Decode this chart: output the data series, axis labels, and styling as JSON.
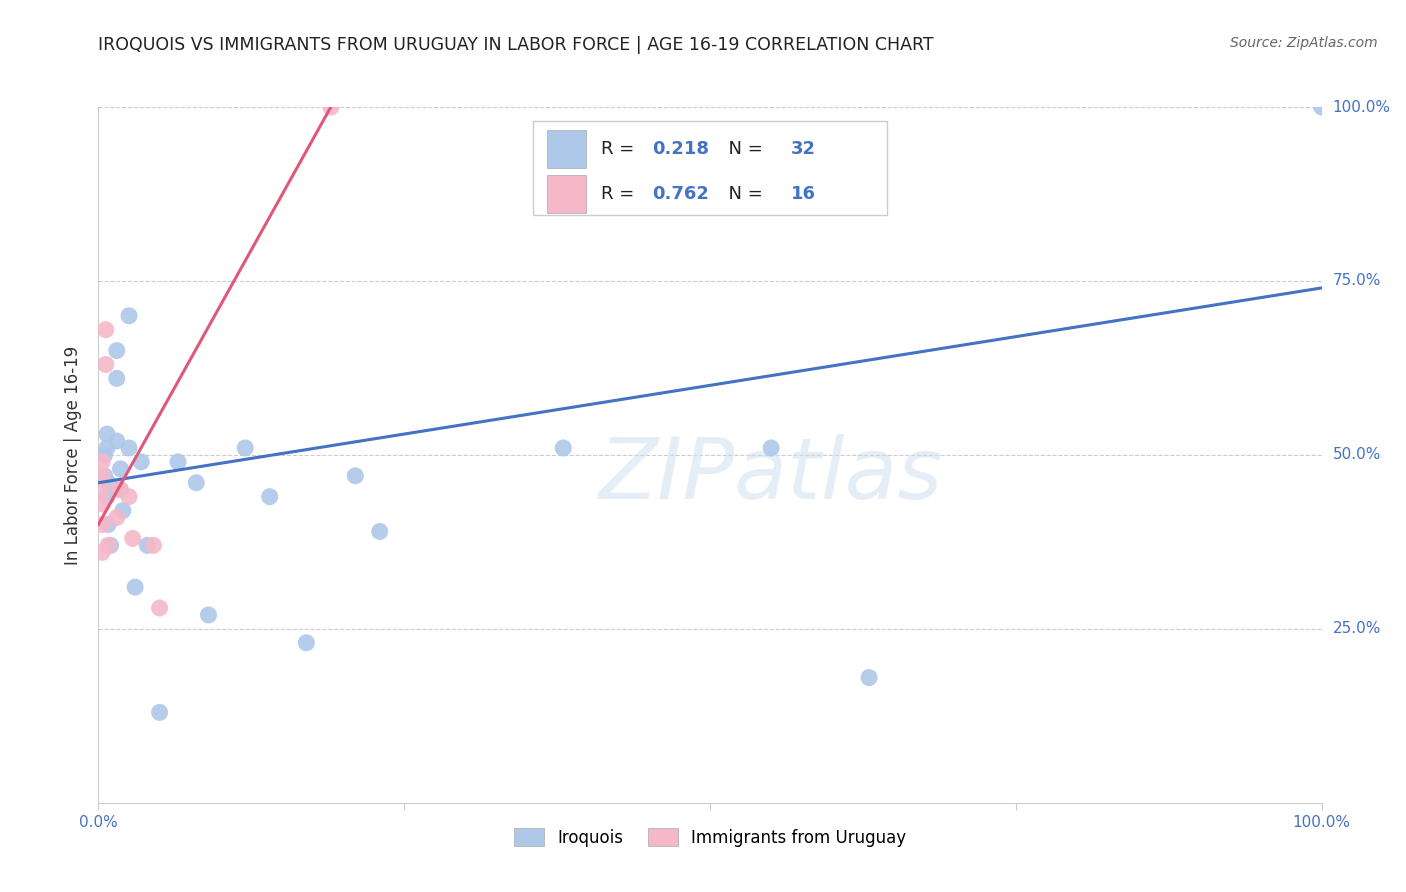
{
  "title": "IROQUOIS VS IMMIGRANTS FROM URUGUAY IN LABOR FORCE | AGE 16-19 CORRELATION CHART",
  "source": "Source: ZipAtlas.com",
  "ylabel": "In Labor Force | Age 16-19",
  "xlim": [
    0,
    1.0
  ],
  "ylim": [
    0,
    1.0
  ],
  "blue_R": 0.218,
  "blue_N": 32,
  "pink_R": 0.762,
  "pink_N": 16,
  "blue_color": "#adc8e8",
  "pink_color": "#f5b8c8",
  "blue_line_color": "#4472c4",
  "pink_line_color": "#e05878",
  "blue_scatter_x": [
    0.005,
    0.005,
    0.007,
    0.007,
    0.007,
    0.008,
    0.008,
    0.01,
    0.015,
    0.015,
    0.015,
    0.018,
    0.018,
    0.02,
    0.025,
    0.025,
    0.03,
    0.035,
    0.04,
    0.05,
    0.065,
    0.08,
    0.09,
    0.12,
    0.14,
    0.17,
    0.21,
    0.23,
    0.38,
    0.55,
    0.63,
    1.0
  ],
  "blue_scatter_y": [
    0.47,
    0.5,
    0.51,
    0.53,
    0.44,
    0.46,
    0.4,
    0.37,
    0.61,
    0.65,
    0.52,
    0.48,
    0.45,
    0.42,
    0.7,
    0.51,
    0.31,
    0.49,
    0.37,
    0.13,
    0.49,
    0.46,
    0.27,
    0.51,
    0.44,
    0.23,
    0.47,
    0.39,
    0.51,
    0.51,
    0.18,
    1.0
  ],
  "pink_scatter_x": [
    0.003,
    0.003,
    0.003,
    0.003,
    0.003,
    0.003,
    0.006,
    0.006,
    0.008,
    0.015,
    0.017,
    0.025,
    0.028,
    0.045,
    0.05,
    0.19
  ],
  "pink_scatter_y": [
    0.36,
    0.4,
    0.43,
    0.45,
    0.47,
    0.49,
    0.63,
    0.68,
    0.37,
    0.41,
    0.45,
    0.44,
    0.38,
    0.37,
    0.28,
    1.0
  ],
  "blue_line_x": [
    0.0,
    1.0
  ],
  "blue_line_y": [
    0.46,
    0.74
  ],
  "pink_line_x": [
    0.0,
    0.19
  ],
  "pink_line_y": [
    0.4,
    1.0
  ],
  "background_color": "#ffffff",
  "grid_color": "#cccccc",
  "title_color": "#222222",
  "right_ytick_color": "#4472c4",
  "xtick_color": "#4472c4"
}
